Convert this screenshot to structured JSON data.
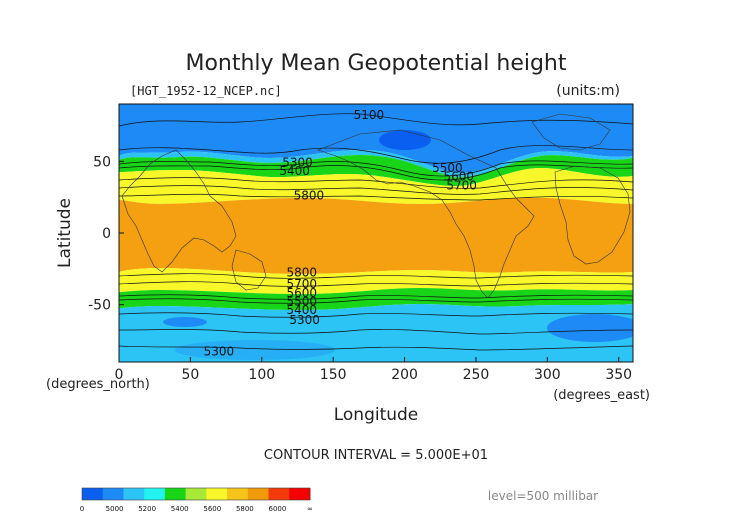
{
  "chart_data": {
    "type": "heatmap",
    "title": "Monthly Mean Geopotential height",
    "file_label": "[HGT_1952-12_NCEP.nc]",
    "units_label": "(units:m)",
    "xlabel": "Longitude",
    "ylabel": "Latitude",
    "x_unit_label": "(degrees_east)",
    "y_unit_label": "(degrees_north)",
    "xlim": [
      0,
      360
    ],
    "ylim": [
      -90,
      90
    ],
    "xticks": [
      0,
      50,
      100,
      150,
      200,
      250,
      300,
      350
    ],
    "yticks": [
      50,
      0,
      -50
    ],
    "contour_interval_text": "CONTOUR INTERVAL = 5.000E+01",
    "level_text": "level=500 millibar",
    "colorbar": {
      "bins": [
        {
          "color": "#0a5ff0"
        },
        {
          "color": "#1e8af5"
        },
        {
          "color": "#2cc3f5"
        },
        {
          "color": "#22f3ee"
        },
        {
          "color": "#18d518"
        },
        {
          "color": "#a8e836"
        },
        {
          "color": "#f7f72a"
        },
        {
          "color": "#f4c418"
        },
        {
          "color": "#f09a0a"
        },
        {
          "color": "#f23a0a"
        },
        {
          "color": "#f50000"
        }
      ],
      "tick_labels": [
        "0",
        "5000",
        "5200",
        "5400",
        "5600",
        "5800",
        "6000",
        "∞"
      ]
    },
    "contour_labels": [
      {
        "text": "5100",
        "lon": 175,
        "lat": 83
      },
      {
        "text": "5300",
        "lon": 125,
        "lat": 50
      },
      {
        "text": "5400",
        "lon": 123,
        "lat": 44
      },
      {
        "text": "5500",
        "lon": 230,
        "lat": 46
      },
      {
        "text": "5600",
        "lon": 238,
        "lat": 40
      },
      {
        "text": "5700",
        "lon": 240,
        "lat": 34
      },
      {
        "text": "5800",
        "lon": 133,
        "lat": 27
      },
      {
        "text": "5800",
        "lon": 128,
        "lat": -27
      },
      {
        "text": "5700",
        "lon": 128,
        "lat": -35
      },
      {
        "text": "5600",
        "lon": 128,
        "lat": -41
      },
      {
        "text": "5500",
        "lon": 128,
        "lat": -47
      },
      {
        "text": "5400",
        "lon": 128,
        "lat": -53
      },
      {
        "text": "5300",
        "lon": 130,
        "lat": -60
      },
      {
        "text": "5300",
        "lon": 70,
        "lat": -82
      }
    ]
  }
}
